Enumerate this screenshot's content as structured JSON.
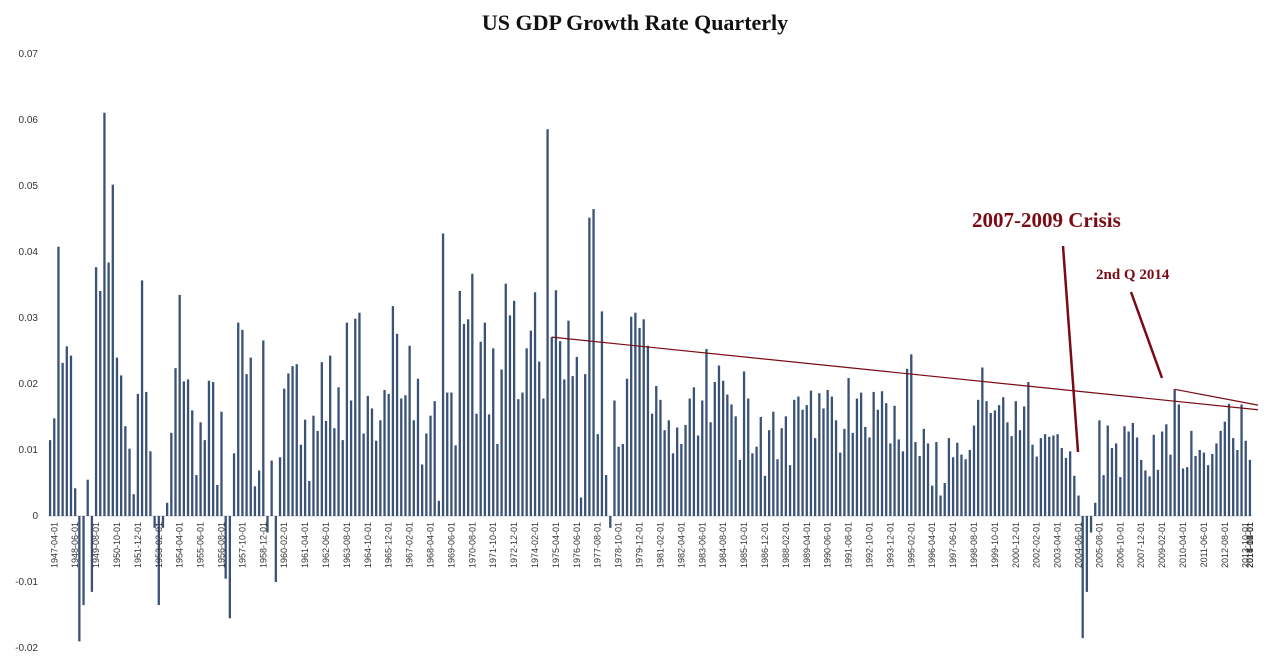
{
  "chart_data": {
    "type": "bar",
    "title": "US GDP Growth Rate Quarterly",
    "xlabel": "",
    "ylabel": "",
    "ylim": [
      -0.02,
      0.07
    ],
    "yticks": [
      -0.02,
      -0.01,
      0,
      0.01,
      0.02,
      0.03,
      0.04,
      0.05,
      0.06,
      0.07
    ],
    "ytick_labels": [
      "-0.02",
      "-0.01",
      "0",
      "0.01",
      "0.02",
      "0.03",
      "0.04",
      "0.05",
      "0.06",
      "0.07"
    ],
    "grid": false,
    "bar_color": "#3a5276",
    "x_tick_labels": [
      "1947-04-01",
      "1948-06-01",
      "1949-08-01",
      "1950-10-01",
      "1951-12-01",
      "1953-02-01",
      "1954-04-01",
      "1955-06-01",
      "1956-08-01",
      "1957-10-01",
      "1958-12-01",
      "1960-02-01",
      "1961-04-01",
      "1962-06-01",
      "1963-08-01",
      "1964-10-01",
      "1965-12-01",
      "1967-02-01",
      "1968-04-01",
      "1969-06-01",
      "1970-08-01",
      "1971-10-01",
      "1972-12-01",
      "1974-02-01",
      "1975-04-01",
      "1976-06-01",
      "1977-08-01",
      "1978-10-01",
      "1979-12-01",
      "1981-02-01",
      "1982-04-01",
      "1983-06-01",
      "1984-08-01",
      "1985-10-01",
      "1986-12-01",
      "1988-02-01",
      "1989-04-01",
      "1990-06-01",
      "1991-08-01",
      "1992-10-01",
      "1993-12-01",
      "1995-02-01",
      "1996-04-01",
      "1997-06-01",
      "1998-08-01",
      "1999-10-01",
      "2000-12-01",
      "2002-02-01",
      "2003-04-01",
      "2004-06-01",
      "2005-08-01",
      "2006-10-01",
      "2007-12-01",
      "2009-02-01",
      "2010-04-01",
      "2011-06-01",
      "2012-08-01",
      "2013-10-01",
      "2014-12-01",
      "2016-02-01",
      "2017-04-01",
      "2018-06-01"
    ],
    "x_tick_every": 5,
    "values": [
      0.0115,
      0.0148,
      0.0408,
      0.0232,
      0.0257,
      0.0243,
      0.0042,
      -0.019,
      -0.0135,
      0.0055,
      -0.0115,
      0.0377,
      0.0341,
      0.0611,
      0.0384,
      0.0502,
      0.024,
      0.0213,
      0.0136,
      0.0102,
      0.0033,
      0.0185,
      0.0357,
      0.0188,
      0.0098,
      -0.0018,
      -0.0135,
      -0.0018,
      0.002,
      0.0126,
      0.0224,
      0.0335,
      0.0204,
      0.0207,
      0.016,
      0.0062,
      0.0142,
      0.0115,
      0.0205,
      0.0203,
      0.0047,
      0.0158,
      -0.0095,
      -0.0155,
      0.0095,
      0.0293,
      0.0282,
      0.0215,
      0.024,
      0.0045,
      0.0069,
      0.0266,
      -0.0025,
      0.0084,
      -0.01,
      0.0089,
      0.0193,
      0.0216,
      0.0227,
      0.023,
      0.0108,
      0.0146,
      0.0053,
      0.0152,
      0.0129,
      0.0233,
      0.0144,
      0.0243,
      0.0133,
      0.0195,
      0.0115,
      0.0293,
      0.0175,
      0.0299,
      0.0308,
      0.0125,
      0.0182,
      0.0163,
      0.0114,
      0.0145,
      0.0191,
      0.0185,
      0.0318,
      0.0276,
      0.0178,
      0.0183,
      0.0258,
      0.0145,
      0.0208,
      0.0078,
      0.0125,
      0.0152,
      0.0174,
      0.0023,
      0.0428,
      0.0187,
      0.0187,
      0.0107,
      0.0341,
      0.0291,
      0.0298,
      0.0367,
      0.0155,
      0.0264,
      0.0293,
      0.0154,
      0.0254,
      0.0109,
      0.0222,
      0.0352,
      0.0304,
      0.0326,
      0.0177,
      0.0187,
      0.0254,
      0.0281,
      0.0339,
      0.0234,
      0.0178,
      0.0586,
      0.0271,
      0.0342,
      0.0265,
      0.0207,
      0.0296,
      0.0212,
      0.0241,
      0.0028,
      0.0215,
      0.0452,
      0.0465,
      0.0124,
      0.031,
      0.0062,
      -0.0018,
      0.0175,
      0.0105,
      0.0109,
      0.0208,
      0.0302,
      0.0308,
      0.0285,
      0.0298,
      0.0258,
      0.0155,
      0.0197,
      0.0176,
      0.013,
      0.0145,
      0.0095,
      0.0134,
      0.0109,
      0.0138,
      0.0178,
      0.0195,
      0.0122,
      0.0175,
      0.0253,
      0.0142,
      0.0203,
      0.0228,
      0.0205,
      0.0184,
      0.0169,
      0.0151,
      0.0085,
      0.0219,
      0.0178,
      0.0095,
      0.0105,
      0.015,
      0.0061,
      0.013,
      0.0158,
      0.0086,
      0.0133,
      0.0151,
      0.0077,
      0.0176,
      0.0181,
      0.0161,
      0.0168,
      0.019,
      0.0118,
      0.0186,
      0.0163,
      0.0191,
      0.0181,
      0.0145,
      0.0096,
      0.0132,
      0.0209,
      0.0126,
      0.0178,
      0.0187,
      0.0135,
      0.0119,
      0.0188,
      0.0161,
      0.0189,
      0.0171,
      0.011,
      0.0167,
      0.0116,
      0.0098,
      0.0223,
      0.0245,
      0.0112,
      0.0091,
      0.0132,
      0.011,
      0.0046,
      0.0112,
      0.0031,
      0.005,
      0.0118,
      0.0089,
      0.0111,
      0.0093,
      0.0086,
      0.01,
      0.0137,
      0.0176,
      0.0225,
      0.0174,
      0.0156,
      0.016,
      0.0168,
      0.018,
      0.0142,
      0.0121,
      0.0174,
      0.013,
      0.0166,
      0.0203,
      0.0108,
      0.009,
      0.0118,
      0.0124,
      0.012,
      0.0122,
      0.0124,
      0.0103,
      0.0088,
      0.0098,
      0.0061,
      0.0031,
      -0.0185,
      -0.0115,
      -0.0025,
      0.002,
      0.0145,
      0.0062,
      0.0137,
      0.0103,
      0.011,
      0.0059,
      0.0136,
      0.0128,
      0.0141,
      0.0119,
      0.0085,
      0.0069,
      0.006,
      0.0123,
      0.007,
      0.0128,
      0.0139,
      0.0093,
      0.0192,
      0.0169,
      0.0072,
      0.0074,
      0.0129,
      0.0091,
      0.01,
      0.0096,
      0.0077,
      0.0094,
      0.011,
      0.0129,
      0.0143,
      0.017,
      0.0118,
      0.01,
      0.0169,
      0.0114,
      0.0085
    ],
    "annotations": [
      {
        "text": "2007-2009 Crisis"
      },
      {
        "text": "2nd Q 2014"
      }
    ],
    "trendline_color": "#7a0a14"
  }
}
